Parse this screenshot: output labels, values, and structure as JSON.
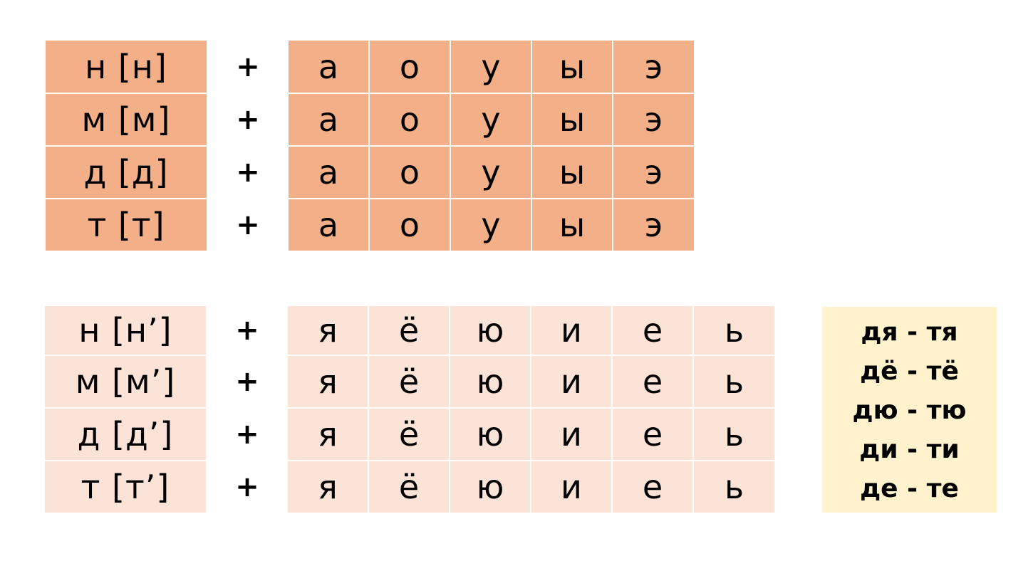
{
  "hard_block": {
    "rows": [
      {
        "consonant": "н [н]",
        "plus": "+",
        "vowels": [
          "а",
          "о",
          "у",
          "ы",
          "э"
        ]
      },
      {
        "consonant": "м [м]",
        "plus": "+",
        "vowels": [
          "а",
          "о",
          "у",
          "ы",
          "э"
        ]
      },
      {
        "consonant": "д [д]",
        "plus": "+",
        "vowels": [
          "а",
          "о",
          "у",
          "ы",
          "э"
        ]
      },
      {
        "consonant": "т [т]",
        "plus": "+",
        "vowels": [
          "а",
          "о",
          "у",
          "ы",
          "э"
        ]
      }
    ],
    "color": "#f3b088"
  },
  "soft_block": {
    "rows": [
      {
        "consonant": "н [н’]",
        "plus": "+",
        "vowels": [
          "я",
          "ё",
          "ю",
          "и",
          "е",
          "ь"
        ]
      },
      {
        "consonant": "м [м’]",
        "plus": "+",
        "vowels": [
          "я",
          "ё",
          "ю",
          "и",
          "е",
          "ь"
        ]
      },
      {
        "consonant": "д [д’]",
        "plus": "+",
        "vowels": [
          "я",
          "ё",
          "ю",
          "и",
          "е",
          "ь"
        ]
      },
      {
        "consonant": "т [т’]",
        "plus": "+",
        "vowels": [
          "я",
          "ё",
          "ю",
          "и",
          "е",
          "ь"
        ]
      }
    ],
    "color": "#fce3d7"
  },
  "pairs_box": {
    "items": [
      "дя - тя",
      "дё - тё",
      "дю - тю",
      "ди - ти",
      "де - те"
    ],
    "color": "#fff2cc"
  }
}
